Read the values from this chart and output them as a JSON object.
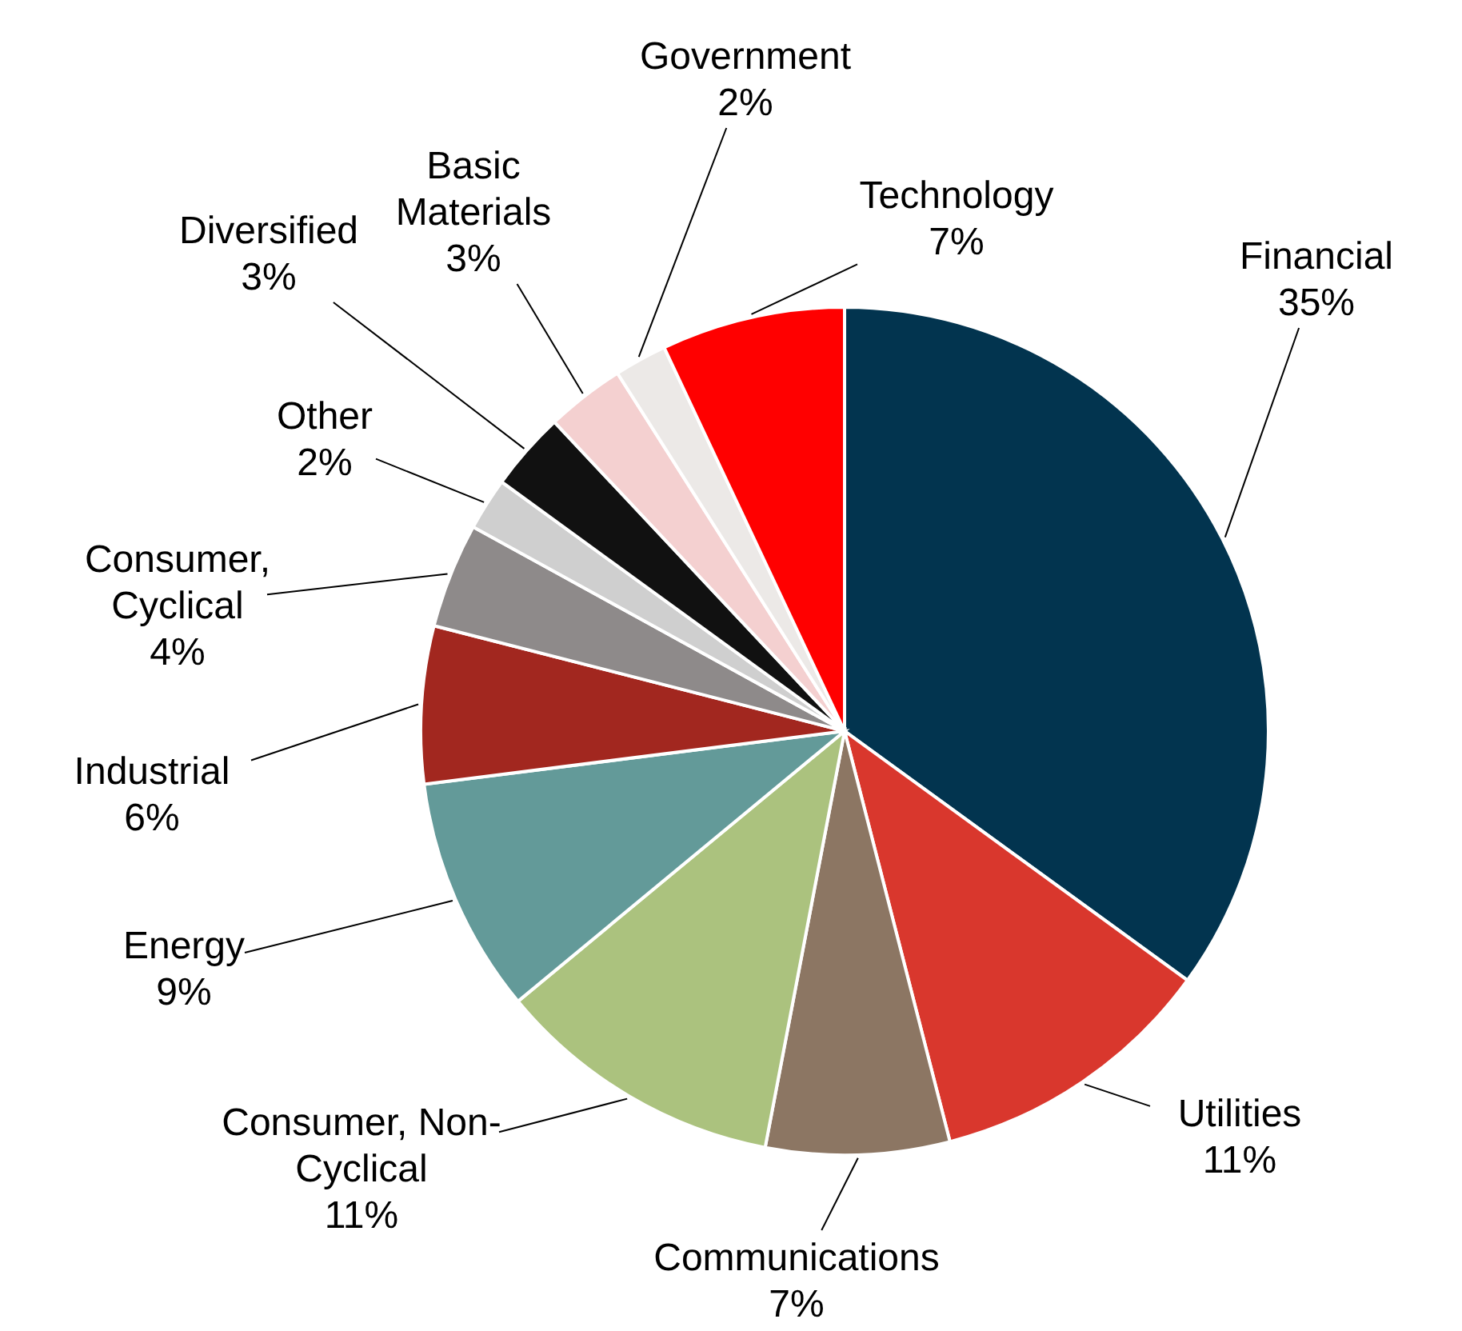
{
  "chart_data": {
    "type": "pie",
    "categories": [
      "Financial",
      "Utilities",
      "Communications",
      "Consumer, Non-Cyclical",
      "Energy",
      "Industrial",
      "Consumer, Cyclical",
      "Other",
      "Diversified",
      "Basic Materials",
      "Government",
      "Technology"
    ],
    "values": [
      35,
      11,
      7,
      11,
      9,
      6,
      4,
      2,
      3,
      3,
      2,
      7
    ],
    "value_labels": [
      "35%",
      "11%",
      "7%",
      "11%",
      "9%",
      "6%",
      "4%",
      "2%",
      "3%",
      "3%",
      "2%",
      "7%"
    ],
    "colors": [
      "#02344f",
      "#d9372d",
      "#8c7663",
      "#abc27e",
      "#639a99",
      "#a2271f",
      "#8e8a8a",
      "#cfcfcf",
      "#111111",
      "#f4d0d0",
      "#ece9e7",
      "#ff0000"
    ]
  }
}
